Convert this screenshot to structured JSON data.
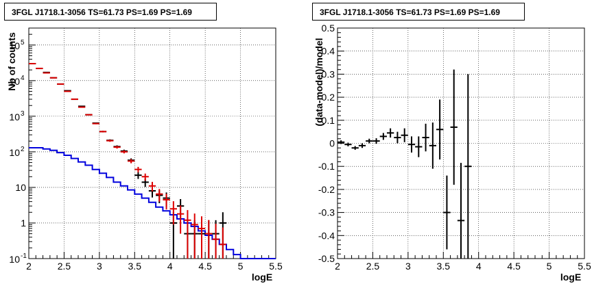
{
  "chart_data": [
    {
      "type": "line",
      "title": "3FGL J1718.1-3056 TS=61.73 PS=1.69 PS=1.69",
      "xlabel": "logE",
      "ylabel": "Nb of counts",
      "xlim": [
        2,
        5.5
      ],
      "ylim": [
        0.1,
        300000
      ],
      "yscale": "log",
      "grid": true,
      "xticks": [
        "2",
        "2.5",
        "3",
        "3.5",
        "4",
        "4.5",
        "5",
        "5.5"
      ],
      "yticks": [
        "10^-1",
        "1",
        "10",
        "10^2",
        "10^3",
        "10^4",
        "10^5"
      ],
      "series": [
        {
          "color": "#000000",
          "style": "points",
          "x": [
            2.05,
            2.15,
            2.25,
            2.35,
            2.45,
            2.55,
            2.65,
            2.75,
            2.85,
            2.95,
            3.05,
            3.15,
            3.25,
            3.35,
            3.45,
            3.55,
            3.65,
            3.75,
            3.85,
            3.95,
            4.05,
            4.15,
            4.25,
            4.35,
            4.45,
            4.55,
            4.65,
            4.75
          ],
          "y": [
            30000,
            22000,
            17000,
            12000,
            8000,
            5200,
            3000,
            1900,
            1100,
            640,
            370,
            210,
            140,
            105,
            58,
            22,
            14,
            8,
            6,
            5,
            1,
            3,
            0.5,
            0.5,
            0.5,
            0.5,
            0.5,
            1
          ],
          "err": [
            175,
            150,
            130,
            110,
            90,
            72,
            55,
            44,
            33,
            25,
            19,
            14,
            12,
            10,
            7.6,
            4.7,
            3.7,
            2.8,
            2.4,
            2.2,
            1,
            1.7,
            0.7,
            0.7,
            0.7,
            0.7,
            0.7,
            1
          ]
        },
        {
          "color": "#dd0000",
          "style": "points",
          "x": [
            2.05,
            2.15,
            2.25,
            2.35,
            2.45,
            2.55,
            2.65,
            2.75,
            2.85,
            2.95,
            3.05,
            3.15,
            3.25,
            3.35,
            3.45,
            3.55,
            3.65,
            3.75,
            3.85,
            3.95,
            4.05,
            4.15,
            4.25,
            4.35,
            4.45,
            4.55,
            4.65,
            4.75
          ],
          "y": [
            30000,
            22000,
            16500,
            12000,
            8000,
            5000,
            3000,
            1800,
            1100,
            620,
            370,
            205,
            135,
            100,
            55,
            32,
            20,
            11,
            6.5,
            4.5,
            2.5,
            1.8,
            1.2,
            0.9,
            0.7,
            0.5,
            0.35,
            0.25
          ],
          "err": [
            175,
            150,
            130,
            110,
            90,
            71,
            55,
            43,
            33,
            25,
            19,
            14,
            12,
            10,
            7.4,
            5.7,
            4.5,
            3.3,
            2.5,
            2.1,
            1.6,
            1.3,
            1.1,
            0.95,
            0.84,
            0.71,
            0.6,
            0.5
          ]
        },
        {
          "color": "#0000dd",
          "style": "step",
          "x": [
            2.05,
            2.15,
            2.25,
            2.35,
            2.45,
            2.55,
            2.65,
            2.75,
            2.85,
            2.95,
            3.05,
            3.15,
            3.25,
            3.35,
            3.45,
            3.55,
            3.65,
            3.75,
            3.85,
            3.95,
            4.05,
            4.15,
            4.25,
            4.35,
            4.45,
            4.55,
            4.65,
            4.75,
            4.85,
            4.95,
            5.05,
            5.15,
            5.25,
            5.35,
            5.45
          ],
          "y": [
            130,
            130,
            120,
            110,
            95,
            80,
            65,
            52,
            42,
            32,
            25,
            19,
            14,
            11,
            8.5,
            6.5,
            5,
            3.8,
            2.8,
            2.2,
            1.7,
            1.3,
            1,
            0.8,
            0.6,
            0.45,
            0.35,
            0.25,
            0.18,
            0.13,
            0.1,
            0.1,
            0.1,
            0.1,
            0.1
          ]
        }
      ]
    },
    {
      "type": "scatter",
      "title": "3FGL J1718.1-3056 TS=61.73 PS=1.69 PS=1.69",
      "xlabel": "logE",
      "ylabel": "(data-model)/model",
      "xlim": [
        2,
        5.5
      ],
      "ylim": [
        -0.5,
        0.5
      ],
      "grid": true,
      "xticks": [
        "2",
        "2.5",
        "3",
        "3.5",
        "4",
        "4.5",
        "5",
        "5.5"
      ],
      "yticks": [
        "-0.5",
        "-0.4",
        "-0.3",
        "-0.2",
        "-0.1",
        "0",
        "0.1",
        "0.2",
        "0.3",
        "0.4",
        "0.5"
      ],
      "series": [
        {
          "color": "#000000",
          "x": [
            2.05,
            2.15,
            2.25,
            2.35,
            2.45,
            2.55,
            2.65,
            2.75,
            2.85,
            2.95,
            3.05,
            3.15,
            3.25,
            3.35,
            3.45,
            3.55,
            3.65,
            3.75,
            3.85
          ],
          "y": [
            0.005,
            -0.005,
            -0.02,
            -0.01,
            0.01,
            0.01,
            0.03,
            0.045,
            0.025,
            0.035,
            -0.005,
            -0.015,
            0.025,
            -0.01,
            0.06,
            -0.3,
            0.07,
            -0.335,
            -0.1
          ],
          "err": [
            0.008,
            0.008,
            0.008,
            0.01,
            0.01,
            0.012,
            0.015,
            0.02,
            0.025,
            0.03,
            0.035,
            0.045,
            0.06,
            0.1,
            0.13,
            0.16,
            0.25,
            0.25,
            0.4
          ]
        }
      ]
    }
  ]
}
